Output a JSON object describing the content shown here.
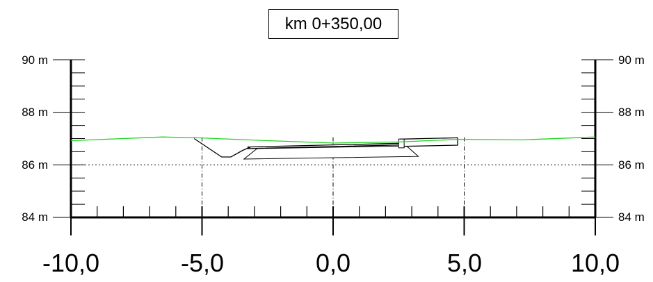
{
  "title": "km 0+350,00",
  "y_axis": {
    "ticks": [
      {
        "value": 90,
        "label": "90 m"
      },
      {
        "value": 88,
        "label": "88 m"
      },
      {
        "value": 86,
        "label": "86 m"
      },
      {
        "value": 84,
        "label": "84 m"
      }
    ]
  },
  "x_axis": {
    "ticks": [
      {
        "value": -10,
        "label": "-10,0"
      },
      {
        "value": -5,
        "label": "-5,0"
      },
      {
        "value": 0,
        "label": "0,0"
      },
      {
        "value": 5,
        "label": "5,0"
      },
      {
        "value": 10,
        "label": "10,0"
      }
    ]
  },
  "ranges": {
    "x": [
      -10,
      10
    ],
    "y": [
      84,
      90
    ]
  },
  "reference_level": 86,
  "colors": {
    "terrain": "#1ed41e",
    "ink": "#000000"
  },
  "terrain_profile": [
    [
      -10,
      86.92
    ],
    [
      -6.5,
      87.06
    ],
    [
      -5.2,
      87.03
    ],
    [
      -2.5,
      86.92
    ],
    [
      0,
      86.83
    ],
    [
      2.5,
      86.87
    ],
    [
      4.8,
      86.97
    ],
    [
      7.2,
      86.95
    ],
    [
      10,
      87.06
    ]
  ],
  "ditch": [
    [
      -5.3,
      87.0
    ],
    [
      -4.25,
      86.3
    ],
    [
      -3.9,
      86.3
    ],
    [
      -3.45,
      86.55
    ],
    [
      -3.15,
      86.68
    ]
  ],
  "road_top": [
    [
      -3.25,
      86.68
    ],
    [
      2.55,
      86.82
    ],
    [
      2.65,
      86.76
    ],
    [
      -3.25,
      86.62
    ]
  ],
  "road_sub": [
    [
      -3.4,
      86.22
    ],
    [
      3.25,
      86.32
    ],
    [
      2.8,
      86.72
    ],
    [
      -2.9,
      86.62
    ]
  ],
  "structure": [
    [
      2.55,
      86.98
    ],
    [
      4.75,
      87.03
    ],
    [
      4.75,
      86.75
    ],
    [
      2.55,
      86.7
    ]
  ]
}
